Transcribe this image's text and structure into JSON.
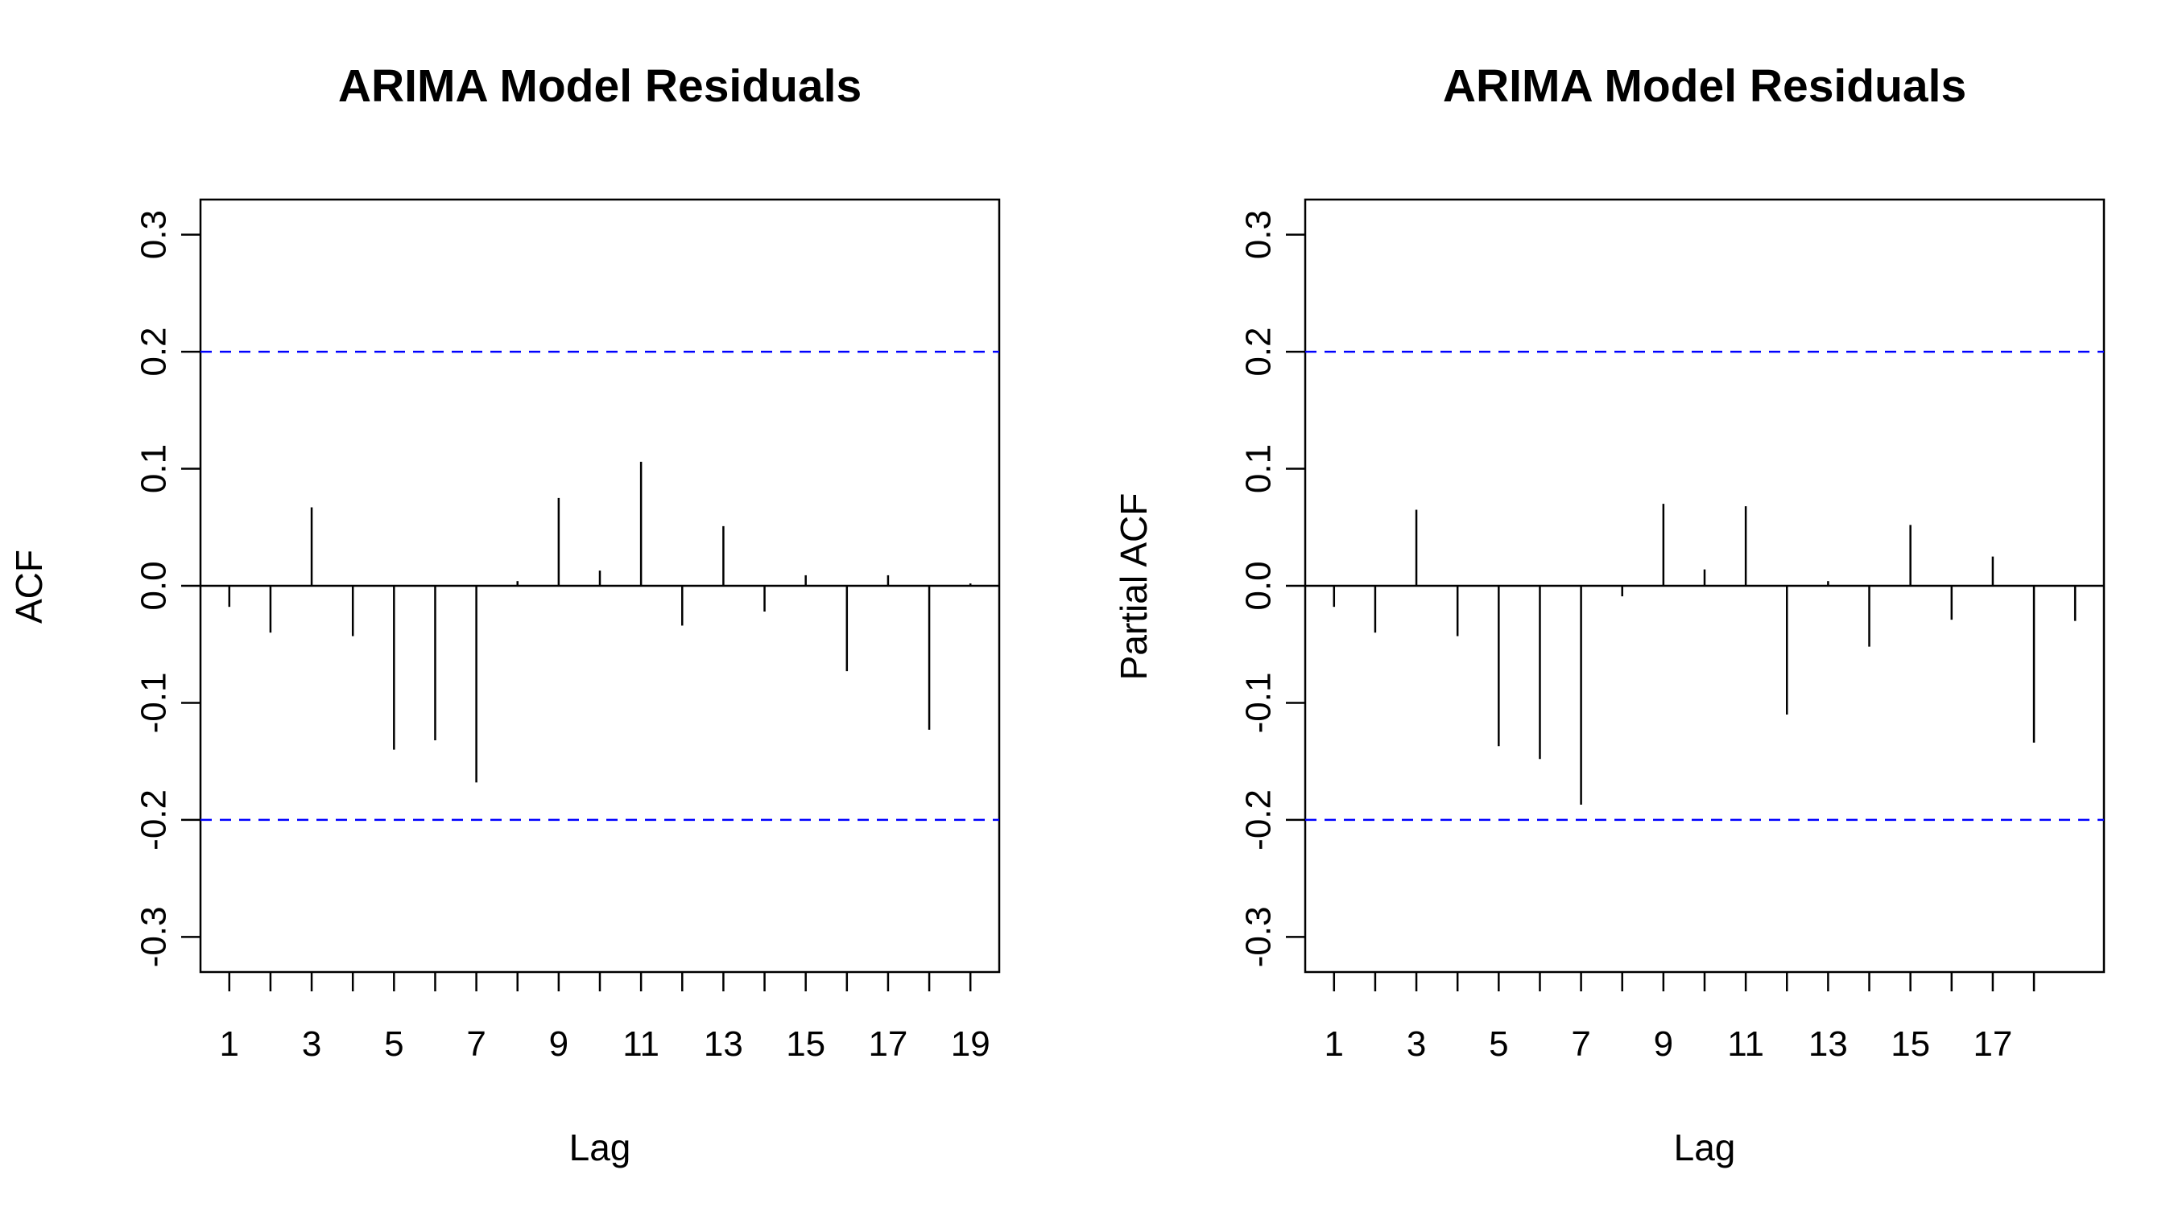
{
  "chart_data": [
    {
      "type": "bar",
      "title": "ARIMA Model Residuals",
      "xlabel": "Lag",
      "ylabel": "ACF",
      "x": [
        1,
        2,
        3,
        4,
        5,
        6,
        7,
        8,
        9,
        10,
        11,
        12,
        13,
        14,
        15,
        16,
        17,
        18,
        19
      ],
      "values": [
        -0.018,
        -0.04,
        0.067,
        -0.043,
        -0.14,
        -0.132,
        -0.168,
        0.004,
        0.075,
        0.013,
        0.106,
        -0.034,
        0.051,
        -0.022,
        0.009,
        -0.073,
        0.009,
        -0.123,
        0.002
      ],
      "xlim": [
        0.3,
        19.7
      ],
      "ylim": [
        -0.33,
        0.33
      ],
      "xticks": [
        1,
        2,
        3,
        4,
        5,
        6,
        7,
        8,
        9,
        10,
        11,
        12,
        13,
        14,
        15,
        16,
        17,
        18,
        19
      ],
      "xtick_labels": [
        "1",
        "",
        "3",
        "",
        "5",
        "",
        "7",
        "",
        "9",
        "",
        "11",
        "",
        "13",
        "",
        "15",
        "",
        "17",
        "",
        "19"
      ],
      "yticks": [
        -0.3,
        -0.2,
        -0.1,
        0.0,
        0.1,
        0.2,
        0.3
      ],
      "ytick_labels": [
        "-0.3",
        "-0.2",
        "-0.1",
        "0.0",
        "0.1",
        "0.2",
        "0.3"
      ],
      "confidence_bounds": [
        0.2,
        -0.2
      ],
      "confidence_color": "#0000ff",
      "bar_color": "#000000",
      "grid": false
    },
    {
      "type": "bar",
      "title": "ARIMA Model Residuals",
      "xlabel": "Lag",
      "ylabel": "Partial ACF",
      "x": [
        1,
        2,
        3,
        4,
        5,
        6,
        7,
        8,
        9,
        10,
        11,
        12,
        13,
        14,
        15,
        16,
        17,
        18,
        19
      ],
      "values": [
        -0.018,
        -0.04,
        0.065,
        -0.043,
        -0.137,
        -0.148,
        -0.187,
        -0.009,
        0.07,
        0.014,
        0.068,
        -0.11,
        0.004,
        -0.052,
        0.052,
        -0.029,
        0.025,
        -0.134,
        -0.03
      ],
      "xlim": [
        0.3,
        19.7
      ],
      "ylim": [
        -0.33,
        0.33
      ],
      "xticks": [
        1,
        2,
        3,
        4,
        5,
        6,
        7,
        8,
        9,
        10,
        11,
        12,
        13,
        14,
        15,
        16,
        17,
        18
      ],
      "xtick_labels": [
        "1",
        "",
        "3",
        "",
        "5",
        "",
        "7",
        "",
        "9",
        "",
        "11",
        "",
        "13",
        "",
        "15",
        "",
        "17",
        ""
      ],
      "yticks": [
        -0.3,
        -0.2,
        -0.1,
        0.0,
        0.1,
        0.2,
        0.3
      ],
      "ytick_labels": [
        "-0.3",
        "-0.2",
        "-0.1",
        "0.0",
        "0.1",
        "0.2",
        "0.3"
      ],
      "confidence_bounds": [
        0.2,
        -0.2
      ],
      "confidence_color": "#0000ff",
      "bar_color": "#000000",
      "grid": false
    }
  ]
}
